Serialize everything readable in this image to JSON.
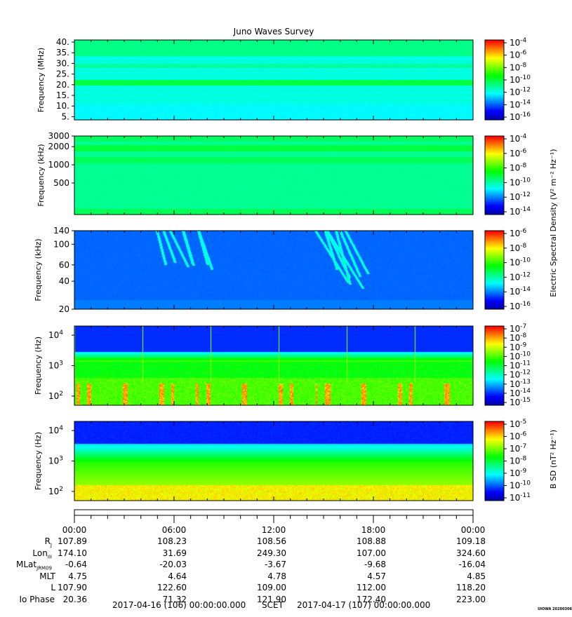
{
  "title": "Juno Waves Survey",
  "panels": [
    {
      "id": "hfr-high",
      "ylabel": "Frequency (MHz)",
      "yscale": "linear",
      "ylim": [
        3.5,
        41
      ],
      "yticks": [
        {
          "value": 40,
          "label": "40."
        },
        {
          "value": 35,
          "label": "35."
        },
        {
          "value": 30,
          "label": "30."
        },
        {
          "value": 25,
          "label": "25."
        },
        {
          "value": 20,
          "label": "20."
        },
        {
          "value": 15,
          "label": "15."
        },
        {
          "value": 10,
          "label": "10."
        },
        {
          "value": 5,
          "label": "5."
        }
      ],
      "colorbar_exponents": [
        "-4",
        "-6",
        "-8",
        "-10",
        "-12",
        "-14",
        "-16"
      ],
      "colorbar_log_range": [
        -17,
        -4
      ]
    },
    {
      "id": "hfr-low",
      "ylabel": "Frequency (kHz)",
      "yscale": "log",
      "ylim": [
        150,
        3000
      ],
      "yticks": [
        {
          "value": 3000,
          "label": "3000"
        },
        {
          "value": 2000,
          "label": "2000"
        },
        {
          "value": 1000,
          "label": "1000"
        },
        {
          "value": 500,
          "label": "500"
        }
      ],
      "colorbar_exponents": [
        "-4",
        "-6",
        "-8",
        "-10",
        "-12",
        "-14"
      ],
      "colorbar_log_range": [
        -15,
        -3
      ]
    },
    {
      "id": "lfr-high",
      "ylabel": "Frequency (kHz)",
      "yscale": "log",
      "ylim": [
        20,
        140
      ],
      "yticks": [
        {
          "value": 140,
          "label": "140"
        },
        {
          "value": 100,
          "label": "100"
        },
        {
          "value": 60,
          "label": "60"
        },
        {
          "value": 40,
          "label": "40"
        },
        {
          "value": 20,
          "label": "20"
        }
      ],
      "colorbar_exponents": [
        "-6",
        "-8",
        "-10",
        "-12",
        "-14",
        "-16"
      ],
      "colorbar_log_range": [
        -16,
        -6
      ]
    },
    {
      "id": "lfr-low",
      "ylabel": "Frequency (Hz)",
      "yscale": "log",
      "ylim": [
        50,
        20000
      ],
      "yticks": [
        {
          "value": 10000,
          "label": "10",
          "exp": "4"
        },
        {
          "value": 1000,
          "label": "10",
          "exp": "3"
        },
        {
          "value": 100,
          "label": "10",
          "exp": "2"
        }
      ],
      "colorbar_exponents": [
        "-7",
        "-8",
        "-9",
        "-10",
        "-11",
        "-12",
        "-13",
        "-14",
        "-15"
      ],
      "colorbar_log_range": [
        -15,
        -7
      ]
    },
    {
      "id": "lfr-magnetic",
      "ylabel": "Frequency (Hz)",
      "yscale": "log",
      "ylim": [
        50,
        20000
      ],
      "yticks": [
        {
          "value": 10000,
          "label": "10",
          "exp": "4"
        },
        {
          "value": 1000,
          "label": "10",
          "exp": "3"
        },
        {
          "value": 100,
          "label": "10",
          "exp": "2"
        }
      ],
      "colorbar_exponents": [
        "-5",
        "-6",
        "-7",
        "-8",
        "-9",
        "-10",
        "-11"
      ],
      "colorbar_log_range": [
        -11,
        -4.5
      ]
    }
  ],
  "colorbar_labels": {
    "electric": "Electric Spectral Density (V² m⁻² Hz⁻¹)",
    "magnetic": "B SD (nT² Hz⁻¹)"
  },
  "colorbar_tick_base": "10",
  "chart_data": {
    "type": "heatmap",
    "title": "Juno Waves Survey",
    "x_time_labels": [
      "00:00",
      "06:00",
      "12:00",
      "18:00",
      "00:00"
    ],
    "x_range_hours": [
      0,
      24
    ],
    "colormap": [
      "#0000a0",
      "#0000ff",
      "#0080ff",
      "#00ffff",
      "#00ff80",
      "#00ff00",
      "#80ff00",
      "#ffff00",
      "#ff8000",
      "#ff0000"
    ],
    "panel_backgrounds": [
      {
        "panel": "hfr-high",
        "description_level_log": -12.5,
        "band_20MHz_level_log": -11
      },
      {
        "panel": "hfr-low",
        "description_level_log": -11.5
      },
      {
        "panel": "lfr-high",
        "description_level_log": -13.5
      },
      {
        "panel": "lfr-low",
        "low_freq_level_log": -10,
        "high_freq_level_log": -13.5
      },
      {
        "panel": "lfr-magnetic",
        "low_freq_level_log": -7,
        "high_freq_level_log": -10
      }
    ]
  },
  "ephemeris": [
    {
      "label": "R",
      "sub": "J",
      "values": [
        "107.89",
        "108.23",
        "108.56",
        "108.88",
        "109.18"
      ]
    },
    {
      "label": "Lon",
      "sub": "III",
      "values": [
        "174.10",
        "31.69",
        "249.30",
        "107.00",
        "324.60"
      ]
    },
    {
      "label": "MLat",
      "sub": "JRM09",
      "values": [
        "-0.64",
        "-20.03",
        "-3.67",
        "-9.68",
        "-16.04"
      ]
    },
    {
      "label": "MLT",
      "sub": "",
      "values": [
        "4.75",
        "4.64",
        "4.78",
        "4.57",
        "4.85"
      ]
    },
    {
      "label": "L",
      "sub": "",
      "values": [
        "107.90",
        "122.60",
        "109.00",
        "112.00",
        "118.20"
      ]
    },
    {
      "label": "Io Phase",
      "sub": "",
      "values": [
        "20.36",
        "71.32",
        "121.90",
        "172.40",
        "223.00"
      ]
    }
  ],
  "footer": {
    "start": "2017-04-16 (106) 00:00:00.000",
    "scet": "SCET",
    "end": "2017-04-17 (107) 00:00:00.000"
  },
  "credit": "UIOWA 20200306"
}
